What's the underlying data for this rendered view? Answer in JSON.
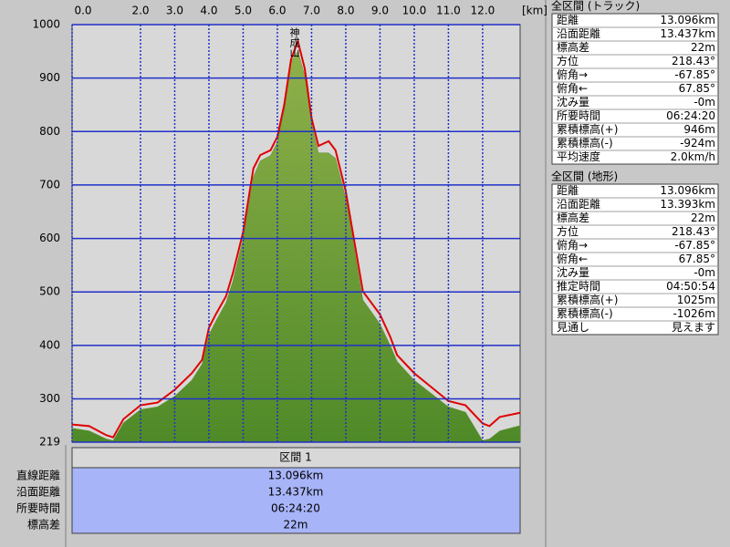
{
  "chart_data": {
    "type": "area",
    "x_unit": "[km]",
    "annotation": "神成山",
    "x": [
      0,
      0.5,
      1.0,
      1.2,
      1.5,
      2.0,
      2.5,
      3.0,
      3.5,
      3.8,
      4.0,
      4.2,
      4.5,
      4.7,
      5.0,
      5.3,
      5.5,
      5.8,
      6.0,
      6.2,
      6.4,
      6.6,
      6.8,
      7.0,
      7.2,
      7.5,
      7.7,
      8.0,
      8.5,
      9.0,
      9.3,
      9.5,
      10.0,
      10.5,
      11.0,
      11.5,
      12.0,
      12.2,
      12.5,
      13.096
    ],
    "series": [
      {
        "type": "area",
        "color": "#5a8c2c",
        "values": [
          245,
          240,
          225,
          222,
          255,
          280,
          285,
          305,
          335,
          365,
          420,
          445,
          480,
          520,
          600,
          715,
          745,
          755,
          780,
          840,
          930,
          950,
          905,
          815,
          760,
          760,
          750,
          675,
          485,
          440,
          400,
          370,
          335,
          310,
          285,
          275,
          222,
          225,
          240,
          250
        ]
      },
      {
        "type": "line",
        "color": "#e00000",
        "values": [
          252,
          249,
          232,
          228,
          262,
          288,
          293,
          317,
          348,
          373,
          433,
          458,
          492,
          535,
          612,
          731,
          756,
          765,
          790,
          850,
          935,
          969,
          918,
          825,
          773,
          782,
          765,
          688,
          501,
          458,
          416,
          382,
          348,
          322,
          296,
          288,
          254,
          249,
          266,
          274
        ]
      }
    ],
    "xlim": [
      0,
      13.096
    ],
    "ylim": [
      219,
      1000
    ],
    "xticks": [
      {
        "value": 0,
        "label": "0.0"
      },
      {
        "value": 2,
        "label": "2.0"
      },
      {
        "value": 3,
        "label": "3.0"
      },
      {
        "value": 4,
        "label": "4.0"
      },
      {
        "value": 5,
        "label": "5.0"
      },
      {
        "value": 6,
        "label": "6.0"
      },
      {
        "value": 7,
        "label": "7.0"
      },
      {
        "value": 8,
        "label": "8.0"
      },
      {
        "value": 9,
        "label": "9.0"
      },
      {
        "value": 10,
        "label": "10.0"
      },
      {
        "value": 11,
        "label": "11.0"
      },
      {
        "value": 12,
        "label": "12.0"
      }
    ],
    "yticks": [
      219,
      300,
      400,
      500,
      600,
      700,
      800,
      900,
      1000
    ],
    "grid": true
  },
  "track_summary": {
    "title": "全区間 (トラック)",
    "rows": [
      [
        "距離",
        "13.096km"
      ],
      [
        "沿面距離",
        "13.437km"
      ],
      [
        "標高差",
        "22m"
      ],
      [
        "方位",
        "218.43°"
      ],
      [
        "俯角→",
        "-67.85°"
      ],
      [
        "俯角←",
        "67.85°"
      ],
      [
        "沈み量",
        "-0m"
      ],
      [
        "所要時間",
        "06:24:20"
      ],
      [
        "累積標高(+)",
        "946m"
      ],
      [
        "累積標高(-)",
        "-924m"
      ],
      [
        "平均速度",
        "2.0km/h"
      ]
    ]
  },
  "terrain_summary": {
    "title": "全区間 (地形)",
    "rows": [
      [
        "距離",
        "13.096km"
      ],
      [
        "沿面距離",
        "13.393km"
      ],
      [
        "標高差",
        "22m"
      ],
      [
        "方位",
        "218.43°"
      ],
      [
        "俯角→",
        "-67.85°"
      ],
      [
        "俯角←",
        "67.85°"
      ],
      [
        "沈み量",
        "-0m"
      ],
      [
        "推定時間",
        "04:50:54"
      ],
      [
        "累積標高(+)",
        "1025m"
      ],
      [
        "累積標高(-)",
        "-1026m"
      ],
      [
        "見通し",
        "見えます"
      ]
    ]
  },
  "section": {
    "title": "区間 1",
    "rows": [
      [
        "直線距離",
        "13.096km"
      ],
      [
        "沿面距離",
        "13.437km"
      ],
      [
        "所要時間",
        "06:24:20"
      ],
      [
        "標高差",
        "22m"
      ]
    ]
  }
}
